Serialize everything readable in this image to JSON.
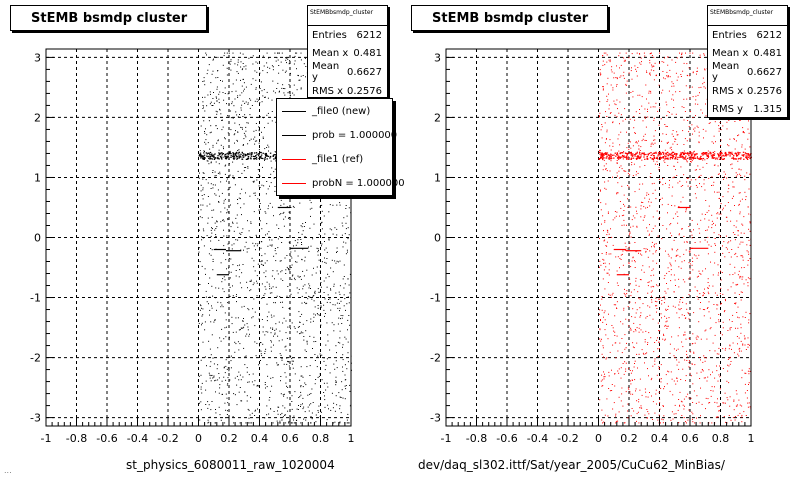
{
  "left_panel": {
    "title": "StEMB bsmdp cluster",
    "x_title": "st_physics_6080011_raw_1020004",
    "stats": {
      "header": "StEMBbsmdp_cluster",
      "rows": [
        {
          "label": "Entries",
          "value": "6212"
        },
        {
          "label": "Mean x",
          "value": "0.481"
        },
        {
          "label": "Mean y",
          "value": "0.6627"
        },
        {
          "label": "RMS x",
          "value": "0.2576"
        }
      ]
    },
    "legend": [
      {
        "label": "_file0 (new)",
        "color": "#000000"
      },
      {
        "label": "prob = 1.000000",
        "color": "#000000"
      },
      {
        "label": "_file1 (ref)",
        "color": "#ff0000"
      },
      {
        "label": "probN = 1.000000",
        "color": "#ff0000"
      }
    ]
  },
  "right_panel": {
    "title": "StEMB bsmdp cluster",
    "x_title": "dev/daq_sl302.ittf/Sat/year_2005/CuCu62_MinBias/",
    "stats": {
      "header": "StEMBbsmdp_cluster",
      "rows": [
        {
          "label": "Entries",
          "value": "6212"
        },
        {
          "label": "Mean x",
          "value": "0.481"
        },
        {
          "label": "Mean y",
          "value": "0.6627"
        },
        {
          "label": "RMS x",
          "value": "0.2576"
        },
        {
          "label": "RMS y",
          "value": "1.315"
        }
      ]
    }
  },
  "footer_text": "...",
  "chart_data": [
    {
      "type": "scatter",
      "title": "StEMB bsmdp cluster",
      "xlabel": "st_physics_6080011_raw_1020004",
      "ylabel": "",
      "xlim": [
        -1,
        1
      ],
      "ylim": [
        -3.14,
        3.14
      ],
      "x_ticks": [
        -1,
        -0.8,
        -0.6,
        -0.4,
        -0.2,
        0,
        0.2,
        0.4,
        0.6,
        0.8,
        1
      ],
      "x_tick_labels": [
        "-1",
        "-0.8",
        "-0.6",
        "-0.4",
        "-0.2",
        "0",
        "0.2",
        "0.4",
        "0.6",
        "0.8",
        "1"
      ],
      "y_ticks": [
        -3,
        -2,
        -1,
        0,
        1,
        2,
        3
      ],
      "y_tick_labels": [
        "-3",
        "-2",
        "-1",
        "0",
        "1",
        "2",
        "3"
      ],
      "grid": true,
      "point_color": "#000000",
      "points_x_range": [
        0,
        1
      ],
      "entries": 6212,
      "dense_band": {
        "y": 1.37,
        "x_range": [
          0,
          1
        ]
      },
      "segments": [
        {
          "x": [
            0.1,
            0.18
          ],
          "y": -0.2
        },
        {
          "x": [
            0.18,
            0.28
          ],
          "y": -0.22
        },
        {
          "x": [
            0.12,
            0.2
          ],
          "y": -0.62
        },
        {
          "x": [
            0.52,
            0.6
          ],
          "y": 0.5
        },
        {
          "x": [
            0.6,
            0.72
          ],
          "y": -0.18
        }
      ]
    },
    {
      "type": "scatter",
      "title": "StEMB bsmdp cluster",
      "xlabel": "dev/daq_sl302.ittf/Sat/year_2005/CuCu62_MinBias/",
      "ylabel": "",
      "xlim": [
        -1,
        1
      ],
      "ylim": [
        -3.14,
        3.14
      ],
      "x_ticks": [
        -1,
        -0.8,
        -0.6,
        -0.4,
        -0.2,
        0,
        0.2,
        0.4,
        0.6,
        0.8,
        1
      ],
      "x_tick_labels": [
        "-1",
        "-0.8",
        "-0.6",
        "-0.4",
        "-0.2",
        "0",
        "0.2",
        "0.4",
        "0.6",
        "0.8",
        "1"
      ],
      "y_ticks": [
        -3,
        -2,
        -1,
        0,
        1,
        2,
        3
      ],
      "y_tick_labels": [
        "-3",
        "-2",
        "-1",
        "0",
        "1",
        "2",
        "3"
      ],
      "grid": true,
      "point_color": "#ff0000",
      "points_x_range": [
        0,
        1
      ],
      "entries": 6212,
      "dense_band": {
        "y": 1.37,
        "x_range": [
          0,
          1
        ]
      },
      "segments": [
        {
          "x": [
            0.1,
            0.18
          ],
          "y": -0.2
        },
        {
          "x": [
            0.18,
            0.28
          ],
          "y": -0.22
        },
        {
          "x": [
            0.12,
            0.2
          ],
          "y": -0.62
        },
        {
          "x": [
            0.52,
            0.6
          ],
          "y": 0.5
        },
        {
          "x": [
            0.6,
            0.72
          ],
          "y": -0.18
        }
      ]
    }
  ]
}
